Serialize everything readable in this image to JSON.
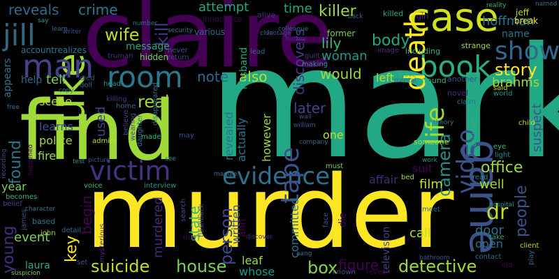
{
  "words": [
    {
      "text": "murder",
      "color": "#fde725"
    },
    {
      "text": "mark",
      "color": "#22a884"
    },
    {
      "text": "claire",
      "color": "#440154"
    },
    {
      "text": "find",
      "color": "#a0da39"
    },
    {
      "text": "game",
      "color": "#3b528b"
    },
    {
      "text": "case",
      "color": "#d0e11c"
    },
    {
      "text": "luke",
      "color": "#a0da39"
    },
    {
      "text": "room",
      "color": "#2a788e"
    },
    {
      "text": "jill",
      "color": "#30697e"
    },
    {
      "text": "man",
      "color": "#414487"
    },
    {
      "text": "book",
      "color": "#2ab07f"
    },
    {
      "text": "death",
      "color": "#fde725"
    },
    {
      "text": "victim",
      "color": "#46327e"
    },
    {
      "text": "evidence",
      "color": "#2c728e"
    },
    {
      "text": "tape",
      "color": "#3b528b"
    },
    {
      "text": "show",
      "color": "#31688e"
    },
    {
      "text": "life",
      "color": "#a0da39"
    },
    {
      "text": "video",
      "color": "#3b528b"
    },
    {
      "text": "house",
      "color": "#7ad151"
    },
    {
      "text": "detective",
      "color": "#a0da39"
    },
    {
      "text": "suicide",
      "color": "#bddf26"
    },
    {
      "text": "story",
      "color": "#fde725"
    },
    {
      "text": "camera",
      "color": "#21918c"
    },
    {
      "text": "person",
      "color": "#414487"
    },
    {
      "text": "office",
      "color": "#a0da39"
    },
    {
      "text": "people",
      "color": "#3b528b"
    },
    {
      "text": "key",
      "color": "#fde725"
    },
    {
      "text": "box",
      "color": "#86d549"
    },
    {
      "text": "kill",
      "color": "#443983"
    },
    {
      "text": "killer",
      "color": "#a0da39"
    },
    {
      "text": "crime",
      "color": "#2a788e"
    },
    {
      "text": "reveals",
      "color": "#31688e"
    },
    {
      "text": "attempt",
      "color": "#22a884"
    },
    {
      "text": "time",
      "color": "#22a884"
    },
    {
      "text": "wife",
      "color": "#bddf26"
    },
    {
      "text": "real",
      "color": "#a0da39"
    },
    {
      "text": "found",
      "color": "#2a788e"
    },
    {
      "text": "young",
      "color": "#472d7b"
    },
    {
      "text": "figure",
      "color": "#440154"
    },
    {
      "text": "dr",
      "color": "#bddf26"
    },
    {
      "text": "later",
      "color": "#414487"
    },
    {
      "text": "would",
      "color": "#a0da39"
    },
    {
      "text": "also",
      "color": "#bddf26"
    },
    {
      "text": "body",
      "color": "#22a884"
    },
    {
      "text": "lily",
      "color": "#35b779"
    },
    {
      "text": "woman",
      "color": "#1f988b"
    },
    {
      "text": "hoffman",
      "color": "#2a788e"
    },
    {
      "text": "brahms",
      "color": "#a0da39"
    },
    {
      "text": "name",
      "color": "#2c728e"
    },
    {
      "text": "suspect",
      "color": "#3b528b"
    },
    {
      "text": "discovers",
      "color": "#443983"
    },
    {
      "text": "state",
      "color": "#35b779"
    },
    {
      "text": "murdered",
      "color": "#482878"
    },
    {
      "text": "begin",
      "color": "#440154"
    },
    {
      "text": "used",
      "color": "#414487"
    },
    {
      "text": "film",
      "color": "#bddf26"
    },
    {
      "text": "well",
      "color": "#a0da39"
    },
    {
      "text": "door",
      "color": "#2c728e"
    },
    {
      "text": "open",
      "color": "#2c728e"
    },
    {
      "text": "call",
      "color": "#bddf26"
    },
    {
      "text": "laura",
      "color": "#2ab07f"
    },
    {
      "text": "event",
      "color": "#7ad151"
    },
    {
      "text": "police",
      "color": "#a0da39"
    },
    {
      "text": "fire",
      "color": "#a0da39"
    },
    {
      "text": "scene",
      "color": "#bddf26"
    },
    {
      "text": "learns",
      "color": "#3b528b"
    },
    {
      "text": "message",
      "color": "#22a884"
    },
    {
      "text": "note",
      "color": "#31688e"
    },
    {
      "text": "tell",
      "color": "#7ad151"
    },
    {
      "text": "help",
      "color": "#31688e"
    },
    {
      "text": "leaf",
      "color": "#a0da39"
    },
    {
      "text": "whose",
      "color": "#1f988b"
    },
    {
      "text": "suit",
      "color": "#440154"
    },
    {
      "text": "affair",
      "color": "#482878"
    },
    {
      "text": "one",
      "color": "#bddf26"
    },
    {
      "text": "left",
      "color": "#bddf26"
    },
    {
      "text": "hidden",
      "color": "#7ad151"
    },
    {
      "text": "year",
      "color": "#7ad151"
    },
    {
      "text": "committed",
      "color": "#2c728e"
    },
    {
      "text": "written",
      "color": "#3b528b"
    },
    {
      "text": "revealed",
      "color": "#2c728e"
    },
    {
      "text": "actually",
      "color": "#2c728e"
    },
    {
      "text": "however",
      "color": "#a0da39"
    },
    {
      "text": "husband",
      "color": "#22a884"
    },
    {
      "text": "ann",
      "color": "#440154"
    },
    {
      "text": "appears",
      "color": "#2c728e"
    },
    {
      "text": "television",
      "color": "#414487"
    },
    {
      "text": "accountrealizes",
      "color": "#2a788e"
    },
    {
      "text": "various",
      "color": "#31688e"
    },
    {
      "text": "innocence",
      "color": "#440154"
    },
    {
      "text": "alive",
      "color": "#46327e"
    },
    {
      "text": "killed",
      "color": "#2ab07f"
    },
    {
      "text": "girl",
      "color": "#482878"
    },
    {
      "text": "jeff",
      "color": "#bddf26"
    },
    {
      "text": "break",
      "color": "#fde725"
    },
    {
      "text": "named",
      "color": "#2c728e"
    },
    {
      "text": "former",
      "color": "#7ad151"
    },
    {
      "text": "including",
      "color": "#35b779"
    },
    {
      "text": "strange",
      "color": "#a0da39"
    },
    {
      "text": "image",
      "color": "#46327e"
    },
    {
      "text": "making",
      "color": "#1f988b"
    },
    {
      "text": "guilt",
      "color": "#443983"
    },
    {
      "text": "truman",
      "color": "#46327e"
    },
    {
      "text": "never",
      "color": "#3b528b"
    },
    {
      "text": "return",
      "color": "#414487"
    },
    {
      "text": "lead",
      "color": "#31688e"
    },
    {
      "text": "around",
      "color": "#35b779"
    },
    {
      "text": "another",
      "color": "#3b528b"
    },
    {
      "text": "novel",
      "color": "#482878"
    },
    {
      "text": "world",
      "color": "#1f988b"
    },
    {
      "text": "said",
      "color": "#bddf26"
    },
    {
      "text": "claim",
      "color": "#2c728e"
    },
    {
      "text": "someone",
      "color": "#a0da39"
    },
    {
      "text": "must",
      "color": "#7ad151"
    },
    {
      "text": "eye",
      "color": "#35b779"
    },
    {
      "text": "child",
      "color": "#bddf26"
    },
    {
      "text": "light",
      "color": "#21918c"
    },
    {
      "text": "read",
      "color": "#21918c"
    },
    {
      "text": "bed",
      "color": "#a0da39"
    },
    {
      "text": "meet",
      "color": "#31688e"
    },
    {
      "text": "client",
      "color": "#bddf26"
    },
    {
      "text": "take",
      "color": "#22a884"
    },
    {
      "text": "face",
      "color": "#3b528b"
    },
    {
      "text": "die",
      "color": "#440154"
    },
    {
      "text": "voice",
      "color": "#35b779"
    },
    {
      "text": "interview",
      "color": "#1f988b"
    },
    {
      "text": "search",
      "color": "#3b528b"
    },
    {
      "text": "flashback",
      "color": "#3b528b"
    },
    {
      "text": "detail",
      "color": "#31688e"
    },
    {
      "text": "james",
      "color": "#3b528b"
    },
    {
      "text": "based",
      "color": "#2a788e"
    },
    {
      "text": "john",
      "color": "#a0da39"
    },
    {
      "text": "mysterious",
      "color": "#482878"
    },
    {
      "text": "becomes",
      "color": "#35b779"
    },
    {
      "text": "character",
      "color": "#2c728e"
    },
    {
      "text": "belief",
      "color": "#414487"
    },
    {
      "text": "contact",
      "color": "#2c728e"
    },
    {
      "text": "play",
      "color": "#31688e"
    },
    {
      "text": "old",
      "color": "#440154"
    },
    {
      "text": "accident",
      "color": "#2ab07f"
    },
    {
      "text": "known",
      "color": "#3b528b"
    },
    {
      "text": "reveal",
      "color": "#440154"
    },
    {
      "text": "suspicion",
      "color": "#7ad151"
    },
    {
      "text": "set",
      "color": "#3b528b"
    },
    {
      "text": "home",
      "color": "#31688e"
    },
    {
      "text": "killing",
      "color": "#443983"
    },
    {
      "text": "admits",
      "color": "#bddf26"
    },
    {
      "text": "disappeared",
      "color": "#2c728e"
    },
    {
      "text": "wearing",
      "color": "#3b528b"
    },
    {
      "text": "daughter",
      "color": "#2c728e"
    },
    {
      "text": "believe",
      "color": "#414487"
    },
    {
      "text": "test",
      "color": "#21918c"
    },
    {
      "text": "picture",
      "color": "#3b528b"
    },
    {
      "text": "see",
      "color": "#1f988b"
    },
    {
      "text": "may",
      "color": "#3b528b"
    },
    {
      "text": "made",
      "color": "#35b779"
    },
    {
      "text": "died",
      "color": "#3b528b"
    },
    {
      "text": "doll",
      "color": "#31688e"
    },
    {
      "text": "head",
      "color": "#1f988b"
    },
    {
      "text": "copy",
      "color": "#2c728e"
    },
    {
      "text": "free",
      "color": "#31688e"
    },
    {
      "text": "recording",
      "color": "#3b528b"
    },
    {
      "text": "happened",
      "color": "#440154"
    },
    {
      "text": "back",
      "color": "#31688e"
    },
    {
      "text": "say",
      "color": "#1f988b"
    },
    {
      "text": "learn",
      "color": "#31688e"
    },
    {
      "text": "writer",
      "color": "#3b528b"
    },
    {
      "text": "security",
      "color": "#2c728e"
    },
    {
      "text": "clue",
      "color": "#2c728e"
    },
    {
      "text": "footage",
      "color": "#3b528b"
    },
    {
      "text": "colleague",
      "color": "#31688e"
    },
    {
      "text": "history",
      "color": "#482878"
    },
    {
      "text": "mental",
      "color": "#2c728e"
    },
    {
      "text": "move",
      "color": "#35b779"
    },
    {
      "text": "work",
      "color": "#1f988b"
    },
    {
      "text": "theory",
      "color": "#2c728e"
    },
    {
      "text": "hospital",
      "color": "#21918c"
    },
    {
      "text": "bathroom",
      "color": "#3b528b"
    },
    {
      "text": "maggie",
      "color": "#2c728e"
    },
    {
      "text": "william",
      "color": "#3b528b"
    },
    {
      "text": "company",
      "color": "#31688e"
    },
    {
      "text": "aang",
      "color": "#2c728e"
    },
    {
      "text": "reality",
      "color": "#35b779"
    },
    {
      "text": "number",
      "color": "#2c728e"
    },
    {
      "text": "wall",
      "color": "#3b528b"
    },
    {
      "text": "trial",
      "color": "#440154"
    },
    {
      "text": "discover",
      "color": "#482878"
    }
  ]
}
